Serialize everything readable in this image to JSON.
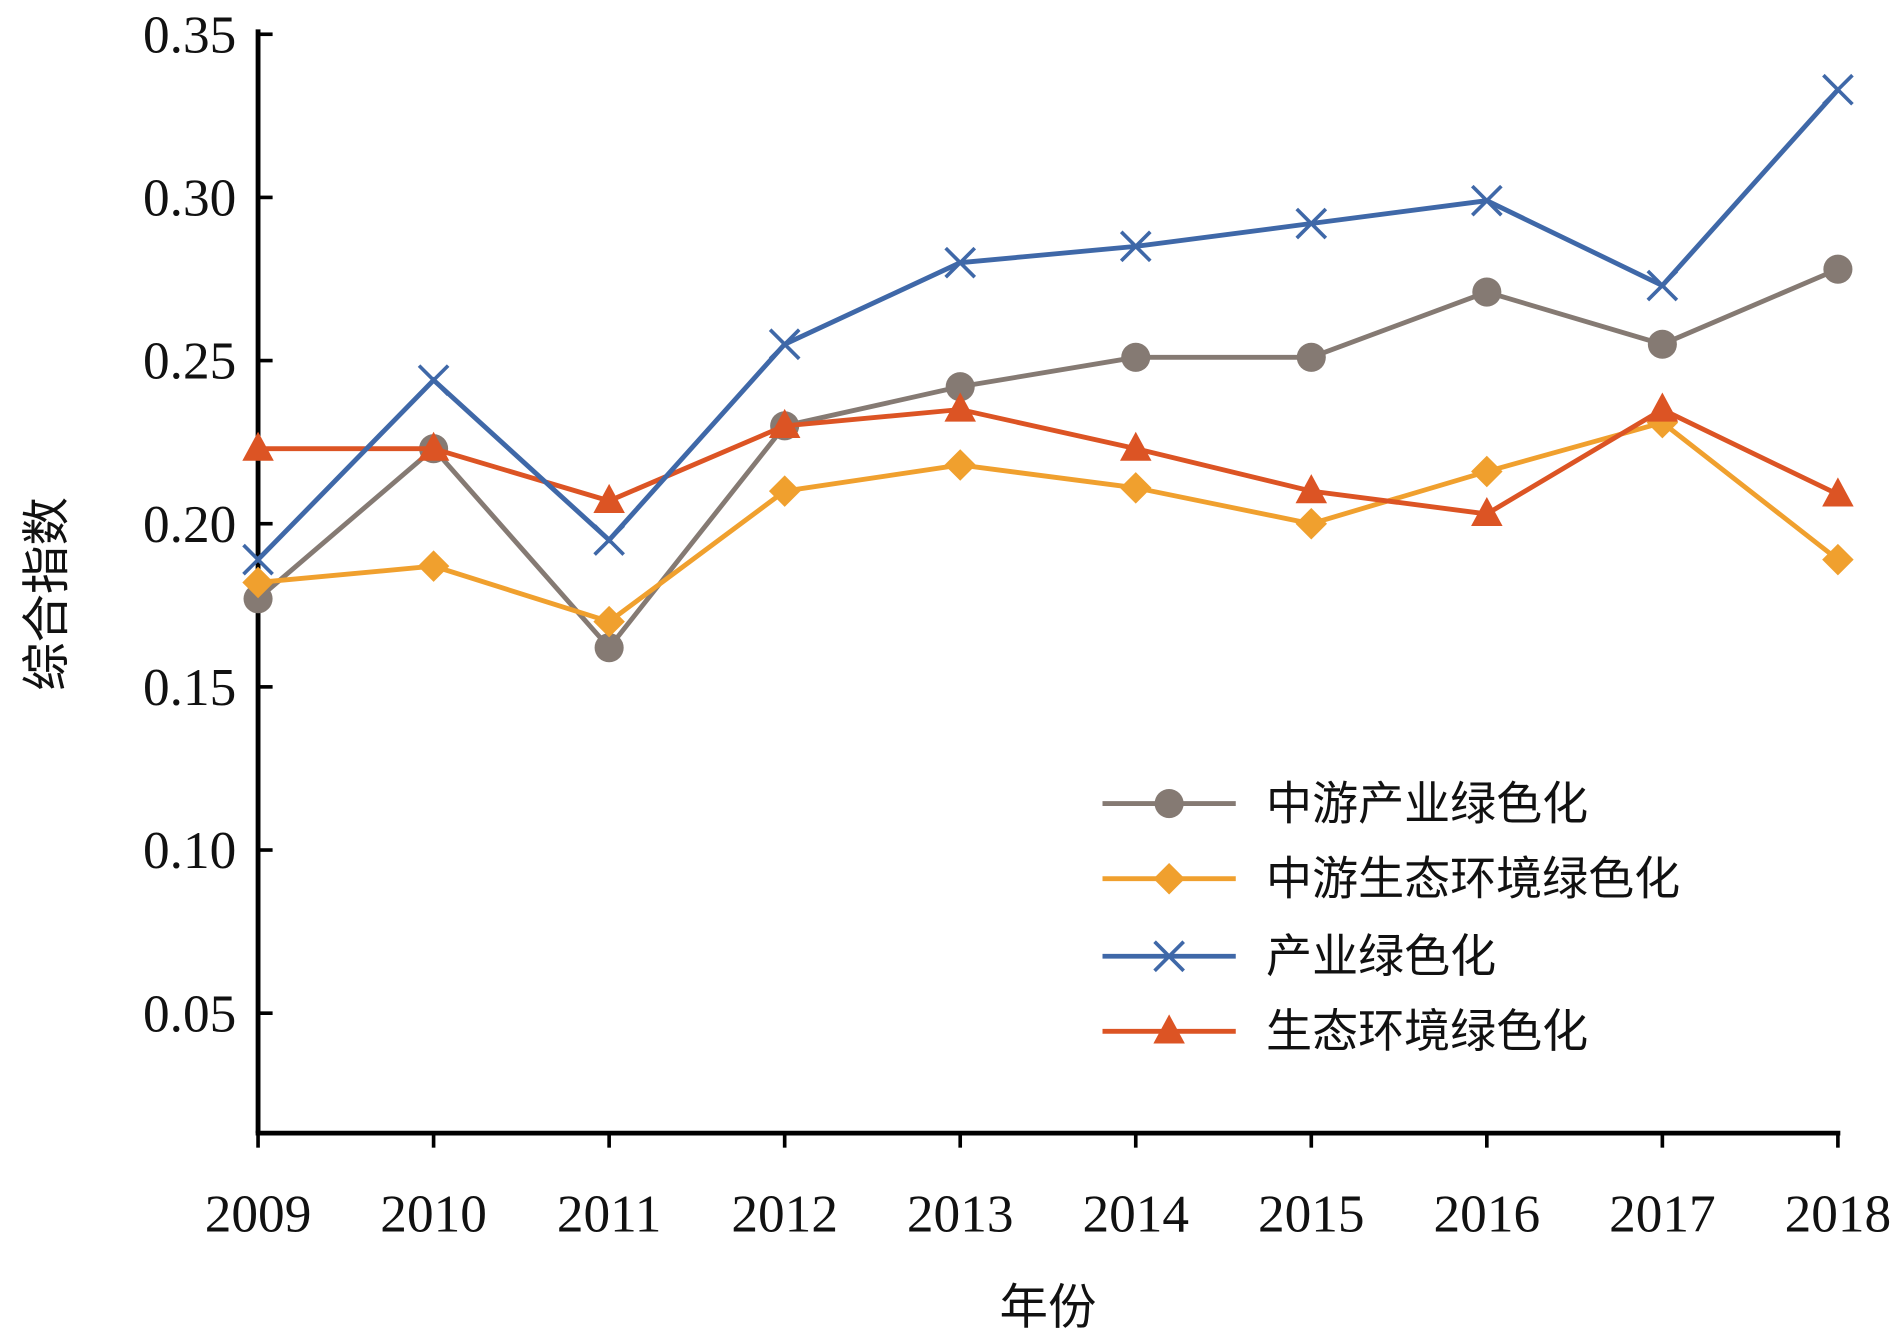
{
  "chart_data": {
    "type": "line",
    "title": "",
    "xlabel": "年份",
    "ylabel": "综合指数",
    "x": [
      2009,
      2010,
      2011,
      2012,
      2013,
      2014,
      2015,
      2016,
      2017,
      2018
    ],
    "x_tick_labels": [
      "2009",
      "2010",
      "2011",
      "2012",
      "2013",
      "2014",
      "2015",
      "2016",
      "2017",
      "2018"
    ],
    "y_ticks": [
      0.05,
      0.1,
      0.15,
      0.2,
      0.25,
      0.3,
      0.35
    ],
    "y_tick_labels": [
      "0.05",
      "0.10",
      "0.15",
      "0.20",
      "0.25",
      "0.30",
      "0.35"
    ],
    "ylim": [
      0.013,
      0.35
    ],
    "grid": false,
    "legend_position": "bottom-right",
    "series": [
      {
        "name": "中游产业绿色化",
        "color": "#857a73",
        "marker": "circle",
        "values": [
          0.177,
          0.223,
          0.162,
          0.23,
          0.242,
          0.251,
          0.251,
          0.271,
          0.255,
          0.278
        ]
      },
      {
        "name": "中游生态环境绿色化",
        "color": "#f0a02e",
        "marker": "diamond",
        "values": [
          0.182,
          0.187,
          0.17,
          0.21,
          0.218,
          0.211,
          0.2,
          0.216,
          0.231,
          0.189
        ]
      },
      {
        "name": "产业绿色化",
        "color": "#3f68a8",
        "marker": "x",
        "values": [
          0.189,
          0.244,
          0.195,
          0.255,
          0.28,
          0.285,
          0.292,
          0.299,
          0.273,
          0.333
        ]
      },
      {
        "name": "生态环境绿色化",
        "color": "#dc5424",
        "marker": "triangle",
        "values": [
          0.223,
          0.223,
          0.207,
          0.23,
          0.235,
          0.223,
          0.21,
          0.203,
          0.235,
          0.209
        ]
      }
    ]
  }
}
